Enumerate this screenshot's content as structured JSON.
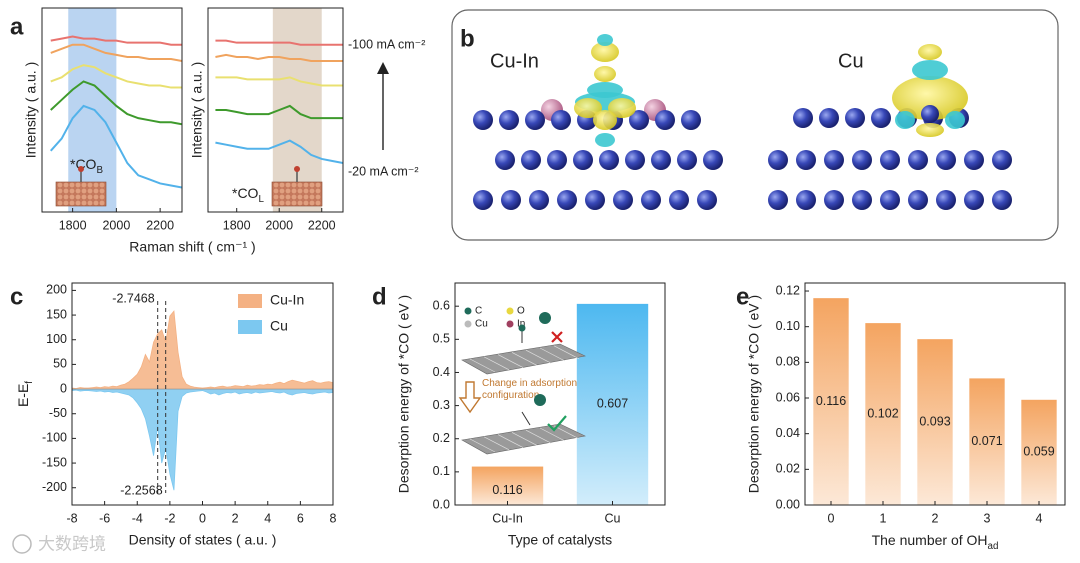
{
  "panel_labels": [
    "a",
    "b",
    "c",
    "d",
    "e"
  ],
  "watermark": "大数跨境",
  "illustration": {
    "labels": [
      "Cu-In",
      "Cu"
    ]
  },
  "chart_data": [
    {
      "type": "line",
      "xlabel": "Raman shift ( cm⁻¹ )",
      "ylabel": "Intensity ( a.u. )",
      "x": [
        1700,
        1750,
        1800,
        1850,
        1900,
        1950,
        2000,
        2050,
        2100,
        2150,
        2200,
        2250,
        2300
      ],
      "xlim": [
        1660,
        2300
      ],
      "xticks": [
        1800,
        2000,
        2200
      ],
      "ylim": [
        0,
        100
      ],
      "shade": [
        1780,
        2000
      ],
      "shade_color": "#a9c9ee",
      "annotation": {
        "text": "*CO",
        "sub": "B"
      },
      "series": [
        {
          "color": "#e8736f",
          "values": [
            84,
            85,
            86,
            85,
            85,
            84,
            84,
            83,
            83,
            83,
            83,
            82,
            82
          ]
        },
        {
          "color": "#f0a35e",
          "values": [
            78,
            80,
            82,
            82,
            80,
            78,
            77,
            76,
            76,
            75,
            75,
            75,
            74
          ]
        },
        {
          "color": "#e9e070",
          "values": [
            64,
            66,
            70,
            72,
            71,
            68,
            66,
            64,
            63,
            62,
            62,
            61,
            61
          ]
        },
        {
          "color": "#3e9a2c",
          "values": [
            50,
            55,
            60,
            64,
            62,
            57,
            52,
            48,
            46,
            45,
            44,
            44,
            43
          ]
        },
        {
          "color": "#52b2ea",
          "values": [
            30,
            36,
            46,
            52,
            50,
            44,
            34,
            24,
            18,
            16,
            14,
            13,
            12
          ]
        }
      ]
    },
    {
      "type": "line",
      "ylabel": "Intensity ( a.u. )",
      "x": [
        1700,
        1750,
        1800,
        1850,
        1900,
        1950,
        2000,
        2050,
        2100,
        2150,
        2200,
        2250,
        2300
      ],
      "xlim": [
        1665,
        2300
      ],
      "xticks": [
        1800,
        2000,
        2200
      ],
      "ylim": [
        0,
        100
      ],
      "shade": [
        1970,
        2200
      ],
      "shade_color": "#dccdbd",
      "annotation": {
        "text": "*CO",
        "sub": "L"
      },
      "current_labels": [
        "-100 mA cm⁻²",
        "-20 mA cm⁻²"
      ],
      "series": [
        {
          "color": "#e8736f",
          "values": [
            84,
            84,
            83,
            83,
            83,
            83,
            83,
            83,
            82,
            82,
            82,
            82,
            82
          ]
        },
        {
          "color": "#f0a35e",
          "values": [
            76,
            77,
            76,
            76,
            75,
            76,
            76,
            75,
            75,
            74,
            74,
            74,
            74
          ]
        },
        {
          "color": "#e9e070",
          "values": [
            66,
            66,
            66,
            65,
            65,
            65,
            65,
            66,
            64,
            63,
            62,
            62,
            62
          ]
        },
        {
          "color": "#3e9a2c",
          "values": [
            50,
            50,
            49,
            48,
            48,
            48,
            50,
            52,
            48,
            46,
            46,
            46,
            46
          ]
        },
        {
          "color": "#52b2ea",
          "values": [
            34,
            33,
            32,
            31,
            31,
            31,
            33,
            35,
            32,
            28,
            26,
            25,
            24
          ]
        }
      ]
    },
    {
      "type": "area",
      "xlabel": "Density of states ( a.u. )",
      "ylabel": {
        "text": "E-E",
        "sub": "f"
      },
      "x": [
        -8,
        -7.75,
        -7.5,
        -7.25,
        -7,
        -6.75,
        -6.5,
        -6.25,
        -6,
        -5.75,
        -5.5,
        -5.25,
        -5,
        -4.75,
        -4.5,
        -4.25,
        -4,
        -3.75,
        -3.5,
        -3.25,
        -3,
        -2.75,
        -2.5,
        -2.25,
        -2,
        -1.75,
        -1.5,
        -1.25,
        -1,
        -0.75,
        -0.5,
        -0.25,
        0,
        0.25,
        0.5,
        0.75,
        1,
        1.25,
        1.5,
        1.75,
        2,
        2.25,
        2.5,
        2.75,
        3,
        3.25,
        3.5,
        3.75,
        4,
        4.25,
        4.5,
        4.75,
        5,
        5.25,
        5.5,
        5.75,
        6,
        6.25,
        6.5,
        6.75,
        7,
        7.25,
        7.5,
        7.75,
        8
      ],
      "xlim": [
        -8,
        8
      ],
      "xticks": [
        -8,
        -6,
        -4,
        -2,
        0,
        2,
        4,
        6,
        8
      ],
      "ylim": [
        -235,
        215
      ],
      "yticks": [
        -200,
        -150,
        -100,
        -50,
        0,
        50,
        100,
        150,
        200
      ],
      "vlines": [
        -2.7468,
        -2.2568
      ],
      "legend": "upper right",
      "series": [
        {
          "name": "Cu-In",
          "color": "#f4b183",
          "values": [
            2,
            1,
            3,
            2,
            2,
            3,
            4,
            3,
            5,
            4,
            6,
            5,
            8,
            10,
            15,
            22,
            30,
            45,
            70,
            55,
            95,
            112,
            120,
            95,
            148,
            158,
            75,
            25,
            10,
            6,
            4,
            3,
            2,
            3,
            4,
            3,
            5,
            6,
            4,
            5,
            7,
            6,
            5,
            8,
            6,
            7,
            9,
            8,
            10,
            9,
            12,
            14,
            11,
            15,
            18,
            16,
            14,
            12,
            15,
            17,
            13,
            12,
            14,
            15,
            13
          ]
        },
        {
          "name": "Cu",
          "color": "#7cc8f0",
          "values": [
            -3,
            -2,
            -4,
            -3,
            -3,
            -4,
            -5,
            -4,
            -6,
            -5,
            -7,
            -6,
            -8,
            -10,
            -12,
            -18,
            -28,
            -40,
            -60,
            -95,
            -135,
            -75,
            -150,
            -120,
            -172,
            -205,
            -45,
            -15,
            -8,
            -6,
            -5,
            -4,
            -3,
            -6,
            -10,
            -8,
            -12,
            -9,
            -7,
            -8,
            -6,
            -10,
            -8,
            -7,
            -9,
            -6,
            -8,
            -7,
            -6,
            -5,
            -7,
            -8,
            -6,
            -10,
            -12,
            -9,
            -8,
            -7,
            -9,
            -10,
            -8,
            -7,
            -6,
            -8,
            -7
          ]
        }
      ]
    },
    {
      "type": "bar",
      "xlabel": "Type of catalysts",
      "ylabel": "Desorption energy of *CO ( eV )",
      "categories": [
        "Cu-In",
        "Cu"
      ],
      "values": [
        0.116,
        0.607
      ],
      "colors": [
        "#f4a460",
        "#4db8f0"
      ],
      "ylim": [
        0,
        0.67
      ],
      "yticks": [
        {
          "value": 0,
          "label": "0.0"
        },
        0.1,
        0.2,
        0.3,
        0.4,
        0.5,
        0.6
      ],
      "inset": {
        "legend": [
          "C",
          "O",
          "Cu",
          "In"
        ],
        "note": "Change in adsorption configuration"
      }
    },
    {
      "type": "bar",
      "xlabel": {
        "text": "The number of OH",
        "sub": "ad"
      },
      "ylabel": "Desorption energy of *CO ( eV )",
      "categories": [
        "0",
        "1",
        "2",
        "3",
        "4"
      ],
      "values": [
        0.116,
        0.102,
        0.093,
        0.071,
        0.059
      ],
      "color": "#f4a460",
      "ylim": [
        0,
        0.1245
      ],
      "yticks": [
        {
          "value": 0,
          "label": "0.00"
        },
        0.02,
        0.04,
        0.06,
        0.08,
        {
          "value": 0.1,
          "label": "0.10"
        },
        0.12
      ]
    }
  ]
}
